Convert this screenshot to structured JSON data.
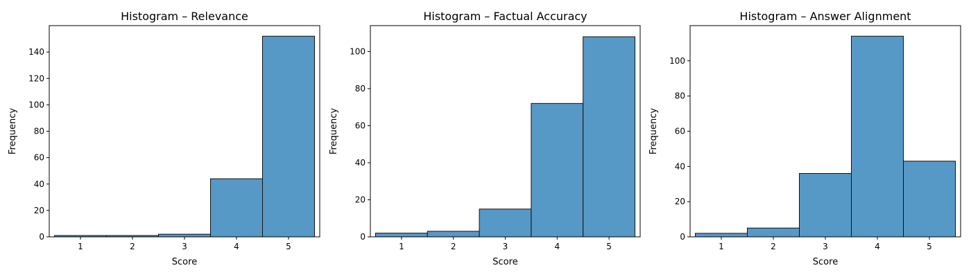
{
  "chart_data": [
    {
      "type": "bar",
      "title": "Histogram – Relevance",
      "xlabel": "Score",
      "ylabel": "Frequency",
      "categories": [
        1,
        2,
        3,
        4,
        5
      ],
      "values": [
        1,
        1,
        2,
        44,
        152
      ],
      "xlim": [
        0.4,
        5.6
      ],
      "ylim": [
        0,
        160
      ],
      "yticks": [
        0,
        20,
        40,
        60,
        80,
        100,
        120,
        140
      ],
      "grid": false,
      "bar_color": "#5799c6"
    },
    {
      "type": "bar",
      "title": "Histogram – Factual Accuracy",
      "xlabel": "Score",
      "ylabel": "Frequency",
      "categories": [
        1,
        2,
        3,
        4,
        5
      ],
      "values": [
        2,
        3,
        15,
        72,
        108
      ],
      "xlim": [
        0.4,
        5.6
      ],
      "ylim": [
        0,
        114
      ],
      "yticks": [
        0,
        20,
        40,
        60,
        80,
        100
      ],
      "grid": false,
      "bar_color": "#5799c6"
    },
    {
      "type": "bar",
      "title": "Histogram – Answer Alignment",
      "xlabel": "Score",
      "ylabel": "Frequency",
      "categories": [
        1,
        2,
        3,
        4,
        5
      ],
      "values": [
        2,
        5,
        36,
        114,
        43
      ],
      "xlim": [
        0.4,
        5.6
      ],
      "ylim": [
        0,
        120
      ],
      "yticks": [
        0,
        20,
        40,
        60,
        80,
        100
      ],
      "grid": false,
      "bar_color": "#5799c6"
    }
  ]
}
